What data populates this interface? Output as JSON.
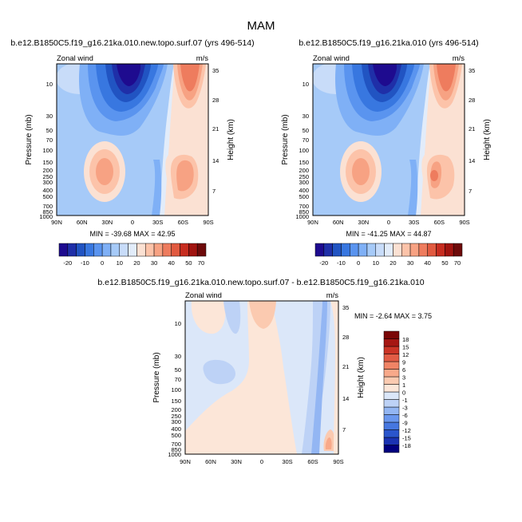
{
  "figure_title": "MAM",
  "palettes": {
    "full": [
      "#1e0b8f",
      "#1f2fa8",
      "#2154c2",
      "#3877e0",
      "#5a94ef",
      "#7fb0f6",
      "#a6caf8",
      "#c8dcf9",
      "#e2ecfa",
      "#fbe1d3",
      "#fcc3a9",
      "#f7a283",
      "#ee7c5e",
      "#e15a40",
      "#c72d20",
      "#a11410",
      "#6e0a0a"
    ],
    "diff": [
      "#00007f",
      "#1a33b3",
      "#2a55cc",
      "#4677e0",
      "#6a97ee",
      "#93b6f3",
      "#bdd2f6",
      "#dbe7f9",
      "#fce6d8",
      "#fbcab0",
      "#f8a98a",
      "#f08466",
      "#e25c45",
      "#cb3426",
      "#a61713",
      "#7a0606"
    ]
  },
  "chart_data": [
    {
      "type": "heatmap",
      "subtitle": "b.e12.B1850C5.f19_g16.21ka.010.new.topo.surf.07 (yrs 496-514)",
      "left_string": "Zonal wind",
      "right_string": "m/s",
      "ylabel": "Pressure (mb)",
      "ylabel_right": "Height (km)",
      "x_ticks": [
        "90N",
        "60N",
        "30N",
        "0",
        "30S",
        "60S",
        "90S"
      ],
      "y_ticks": [
        "10",
        "30",
        "50",
        "70",
        "100",
        "150",
        "200",
        "250",
        "300",
        "400",
        "500",
        "700",
        "850",
        "1000"
      ],
      "y_ticks_right": [
        "35",
        "28",
        "21",
        "14",
        "7"
      ],
      "minmax": "MIN = -39.68   MAX =  42.95",
      "colorbar_labels": [
        "-20",
        "-10",
        "0",
        "10",
        "20",
        "30",
        "40",
        "50",
        "70"
      ],
      "grid": false
    },
    {
      "type": "heatmap",
      "subtitle": "b.e12.B1850C5.f19_g16.21ka.010 (yrs 496-514)",
      "left_string": "Zonal wind",
      "right_string": "m/s",
      "ylabel": "Pressure (mb)",
      "ylabel_right": "Height (km)",
      "x_ticks": [
        "90N",
        "60N",
        "30N",
        "0",
        "30S",
        "60S",
        "90S"
      ],
      "y_ticks": [
        "10",
        "30",
        "50",
        "70",
        "100",
        "150",
        "200",
        "250",
        "300",
        "400",
        "500",
        "700",
        "850",
        "1000"
      ],
      "y_ticks_right": [
        "35",
        "28",
        "21",
        "14",
        "7"
      ],
      "minmax": "MIN = -41.25   MAX =  44.87",
      "colorbar_labels": [
        "-20",
        "-10",
        "0",
        "10",
        "20",
        "30",
        "40",
        "50",
        "70"
      ],
      "grid": false
    },
    {
      "type": "heatmap",
      "subtitle": "b.e12.B1850C5.f19_g16.21ka.010.new.topo.surf.07 - b.e12.B1850C5.f19_g16.21ka.010",
      "left_string": "Zonal wind",
      "right_string": "m/s",
      "ylabel": "Pressure (mb)",
      "ylabel_right": "Height (km)",
      "x_ticks": [
        "90N",
        "60N",
        "30N",
        "0",
        "30S",
        "60S",
        "90S"
      ],
      "y_ticks": [
        "10",
        "30",
        "50",
        "70",
        "100",
        "150",
        "200",
        "250",
        "300",
        "400",
        "500",
        "700",
        "850",
        "1000"
      ],
      "y_ticks_right": [
        "35",
        "28",
        "21",
        "14",
        "7"
      ],
      "minmax": "MIN = -2.64   MAX =  3.75",
      "colorbar_labels": [
        "18",
        "15",
        "12",
        "9",
        "6",
        "3",
        "1",
        "0",
        "-1",
        "-3",
        "-6",
        "-9",
        "-12",
        "-15",
        "-18"
      ],
      "grid": false
    }
  ]
}
